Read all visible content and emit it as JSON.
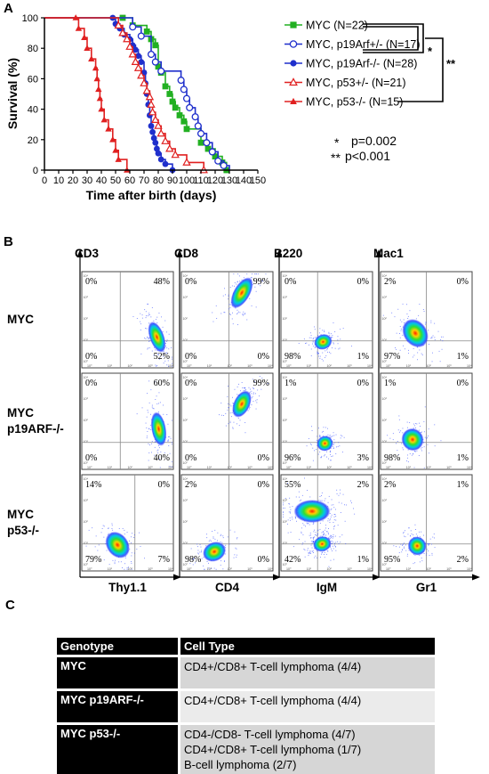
{
  "panel_labels": {
    "a": "A",
    "b": "B",
    "c": "C"
  },
  "chart_data": [
    {
      "type": "line",
      "subtype": "kaplan-meier survival",
      "xlabel": "Time after birth (days)",
      "ylabel": "Survival (%)",
      "xlim": [
        0,
        150
      ],
      "ylim": [
        0,
        100
      ],
      "xticks": [
        0,
        10,
        20,
        30,
        40,
        50,
        60,
        70,
        80,
        90,
        100,
        110,
        120,
        130,
        140,
        150
      ],
      "yticks": [
        0,
        20,
        40,
        60,
        80,
        100
      ],
      "legend_position": "right",
      "series": [
        {
          "name": "MYC (N=22)",
          "color": "#22b022",
          "marker": "square-filled",
          "steps": [
            [
              0,
              100
            ],
            [
              55,
              100
            ],
            [
              62,
              95
            ],
            [
              72,
              91
            ],
            [
              75,
              86
            ],
            [
              78,
              82
            ],
            [
              80,
              68
            ],
            [
              82,
              64
            ],
            [
              85,
              55
            ],
            [
              88,
              50
            ],
            [
              90,
              45
            ],
            [
              92,
              41
            ],
            [
              95,
              36
            ],
            [
              98,
              32
            ],
            [
              100,
              27
            ],
            [
              110,
              18
            ],
            [
              115,
              14
            ],
            [
              120,
              9
            ],
            [
              125,
              5
            ],
            [
              128,
              0
            ]
          ],
          "points": [
            [
              55,
              100
            ],
            [
              62,
              95
            ],
            [
              72,
              91
            ],
            [
              75,
              86
            ],
            [
              78,
              82
            ],
            [
              80,
              68
            ],
            [
              82,
              64
            ],
            [
              85,
              55
            ],
            [
              88,
              50
            ],
            [
              90,
              45
            ],
            [
              92,
              41
            ],
            [
              95,
              36
            ],
            [
              98,
              32
            ],
            [
              100,
              27
            ],
            [
              110,
              18
            ],
            [
              115,
              14
            ],
            [
              120,
              9
            ],
            [
              125,
              5
            ],
            [
              128,
              0
            ]
          ]
        },
        {
          "name": "MYC, p19Arf+/- (N=17)",
          "color": "#1f2fcc",
          "marker": "circle-open",
          "steps": [
            [
              0,
              100
            ],
            [
              55,
              100
            ],
            [
              62,
              94
            ],
            [
              68,
              88
            ],
            [
              75,
              76
            ],
            [
              78,
              71
            ],
            [
              82,
              65
            ],
            [
              92,
              65
            ],
            [
              96,
              59
            ],
            [
              98,
              53
            ],
            [
              100,
              47
            ],
            [
              102,
              41
            ],
            [
              106,
              35
            ],
            [
              108,
              29
            ],
            [
              110,
              24
            ],
            [
              114,
              18
            ],
            [
              118,
              12
            ],
            [
              122,
              6
            ],
            [
              126,
              3
            ],
            [
              130,
              0
            ]
          ],
          "points": [
            [
              62,
              94
            ],
            [
              68,
              88
            ],
            [
              75,
              76
            ],
            [
              78,
              71
            ],
            [
              82,
              65
            ],
            [
              96,
              59
            ],
            [
              98,
              53
            ],
            [
              100,
              47
            ],
            [
              102,
              41
            ],
            [
              106,
              35
            ],
            [
              108,
              29
            ],
            [
              110,
              24
            ],
            [
              114,
              18
            ],
            [
              118,
              12
            ],
            [
              122,
              6
            ],
            [
              126,
              3
            ]
          ]
        },
        {
          "name": "MYC, p19Arf-/- (N=28)",
          "color": "#1f2fcc",
          "marker": "circle-filled",
          "steps": [
            [
              0,
              100
            ],
            [
              48,
              100
            ],
            [
              50,
              96
            ],
            [
              53,
              93
            ],
            [
              56,
              89
            ],
            [
              60,
              86
            ],
            [
              62,
              82
            ],
            [
              64,
              79
            ],
            [
              66,
              75
            ],
            [
              68,
              71
            ],
            [
              70,
              64
            ],
            [
              71,
              57
            ],
            [
              72,
              50
            ],
            [
              73,
              43
            ],
            [
              74,
              36
            ],
            [
              75,
              29
            ],
            [
              76,
              25
            ],
            [
              77,
              21
            ],
            [
              78,
              18
            ],
            [
              79,
              14
            ],
            [
              80,
              11
            ],
            [
              82,
              7
            ],
            [
              85,
              4
            ],
            [
              90,
              0
            ]
          ],
          "points": [
            [
              48,
              100
            ],
            [
              50,
              96
            ],
            [
              53,
              93
            ],
            [
              56,
              89
            ],
            [
              60,
              86
            ],
            [
              62,
              82
            ],
            [
              64,
              79
            ],
            [
              66,
              75
            ],
            [
              68,
              71
            ],
            [
              70,
              64
            ],
            [
              71,
              57
            ],
            [
              72,
              50
            ],
            [
              73,
              43
            ],
            [
              74,
              36
            ],
            [
              75,
              29
            ],
            [
              76,
              25
            ],
            [
              77,
              21
            ],
            [
              78,
              18
            ],
            [
              79,
              14
            ],
            [
              80,
              11
            ],
            [
              82,
              7
            ],
            [
              85,
              4
            ],
            [
              90,
              0
            ]
          ]
        },
        {
          "name": "MYC, p53+/- (N=21)",
          "color": "#e02020",
          "marker": "triangle-open",
          "steps": [
            [
              0,
              100
            ],
            [
              50,
              100
            ],
            [
              52,
              95
            ],
            [
              55,
              90
            ],
            [
              58,
              86
            ],
            [
              60,
              81
            ],
            [
              62,
              76
            ],
            [
              64,
              71
            ],
            [
              66,
              67
            ],
            [
              68,
              62
            ],
            [
              70,
              57
            ],
            [
              72,
              52
            ],
            [
              74,
              48
            ],
            [
              75,
              43
            ],
            [
              76,
              38
            ],
            [
              78,
              33
            ],
            [
              80,
              29
            ],
            [
              82,
              24
            ],
            [
              85,
              19
            ],
            [
              88,
              14
            ],
            [
              92,
              10
            ],
            [
              100,
              5
            ],
            [
              112,
              0
            ]
          ],
          "points": [
            [
              52,
              95
            ],
            [
              55,
              90
            ],
            [
              58,
              86
            ],
            [
              60,
              81
            ],
            [
              62,
              76
            ],
            [
              64,
              71
            ],
            [
              66,
              67
            ],
            [
              68,
              62
            ],
            [
              70,
              57
            ],
            [
              72,
              52
            ],
            [
              74,
              48
            ],
            [
              75,
              43
            ],
            [
              76,
              38
            ],
            [
              78,
              33
            ],
            [
              80,
              29
            ],
            [
              82,
              24
            ],
            [
              85,
              19
            ],
            [
              88,
              14
            ],
            [
              92,
              10
            ],
            [
              100,
              5
            ],
            [
              112,
              0
            ]
          ]
        },
        {
          "name": "MYC, p53-/- (N=15)",
          "color": "#e02020",
          "marker": "triangle-filled",
          "steps": [
            [
              0,
              100
            ],
            [
              22,
              100
            ],
            [
              24,
              93
            ],
            [
              28,
              87
            ],
            [
              30,
              80
            ],
            [
              33,
              73
            ],
            [
              36,
              67
            ],
            [
              37,
              60
            ],
            [
              38,
              53
            ],
            [
              39,
              47
            ],
            [
              40,
              40
            ],
            [
              42,
              33
            ],
            [
              45,
              27
            ],
            [
              48,
              20
            ],
            [
              50,
              13
            ],
            [
              52,
              7
            ],
            [
              58,
              0
            ]
          ],
          "points": [
            [
              22,
              100
            ],
            [
              24,
              93
            ],
            [
              28,
              87
            ],
            [
              30,
              80
            ],
            [
              33,
              73
            ],
            [
              36,
              67
            ],
            [
              37,
              60
            ],
            [
              38,
              53
            ],
            [
              39,
              47
            ],
            [
              40,
              40
            ],
            [
              42,
              33
            ],
            [
              45,
              27
            ],
            [
              48,
              20
            ],
            [
              50,
              13
            ],
            [
              52,
              7
            ],
            [
              58,
              0
            ]
          ]
        }
      ],
      "significance_marks": [
        "*",
        "**"
      ],
      "pvalues": [
        {
          "mark": "*",
          "text": "p=0.002"
        },
        {
          "mark": "**",
          "text": "p<0.001"
        }
      ]
    },
    {
      "type": "scatter",
      "subtype": "flow cytometry quadrant plots",
      "row_labels": [
        [
          "MYC"
        ],
        [
          "MYC",
          "p19ARF-/-"
        ],
        [
          "MYC",
          "p53-/-"
        ]
      ],
      "columns": [
        {
          "ylabel": "CD3",
          "xlabel": "Thy1.1"
        },
        {
          "ylabel": "CD8",
          "xlabel": "CD4"
        },
        {
          "ylabel": "B220",
          "xlabel": "IgM"
        },
        {
          "ylabel": "Mac1",
          "xlabel": "Gr1"
        }
      ],
      "quadrants": [
        [
          [
            "0%",
            "48%",
            "0%",
            "52%"
          ],
          [
            "0%",
            "99%",
            "0%",
            "0%"
          ],
          [
            "0%",
            "0%",
            "98%",
            "1%"
          ],
          [
            "2%",
            "0%",
            "97%",
            "1%"
          ]
        ],
        [
          [
            "0%",
            "60%",
            "0%",
            "40%"
          ],
          [
            "0%",
            "99%",
            "0%",
            "0%"
          ],
          [
            "1%",
            "0%",
            "96%",
            "3%"
          ],
          [
            "1%",
            "0%",
            "98%",
            "1%"
          ]
        ],
        [
          [
            "14%",
            "0%",
            "79%",
            "7%"
          ],
          [
            "2%",
            "0%",
            "98%",
            "0%"
          ],
          [
            "55%",
            "2%",
            "42%",
            "1%"
          ],
          [
            "2%",
            "1%",
            "95%",
            "2%"
          ]
        ]
      ],
      "quadrant_order": [
        "top-left",
        "top-right",
        "bottom-left",
        "bottom-right"
      ],
      "tick_labels": [
        "10⁰",
        "10¹",
        "10²",
        "10³",
        "10⁴"
      ]
    }
  ],
  "table": {
    "headers": [
      "Genotype",
      "Cell Type"
    ],
    "rows": [
      {
        "genotype": "MYC",
        "cells": [
          "CD4+/CD8+ T-cell lymphoma (4/4)"
        ]
      },
      {
        "genotype": "MYC p19ARF-/-",
        "cells": [
          "CD4+/CD8+ T-cell lymphoma (4/4)"
        ]
      },
      {
        "genotype": "MYC p53-/-",
        "cells": [
          "CD4-/CD8- T-cell lymphoma (4/7)",
          "CD4+/CD8+ T-cell lymphoma (1/7)",
          "B-cell lymphoma (2/7)"
        ]
      }
    ]
  }
}
